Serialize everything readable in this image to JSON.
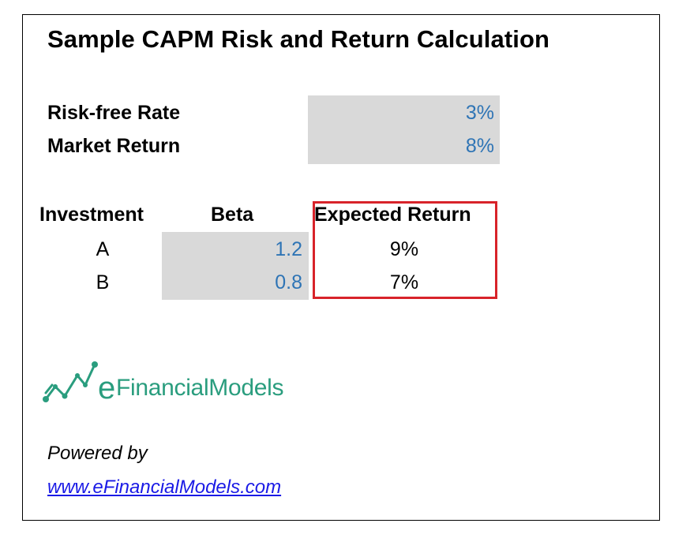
{
  "title": "Sample CAPM Risk and Return Calculation",
  "inputs": {
    "risk_free_label": "Risk-free Rate",
    "risk_free_value": "3%",
    "market_return_label": "Market Return",
    "market_return_value": "8%"
  },
  "table": {
    "headers": {
      "investment": "Investment",
      "beta": "Beta",
      "expected_return": "Expected Return"
    },
    "rows": [
      {
        "investment": "A",
        "beta": "1.2",
        "expected_return": "9%"
      },
      {
        "investment": "B",
        "beta": "0.8",
        "expected_return": "7%"
      }
    ]
  },
  "logo": {
    "prefix": "e",
    "name": "FinancialModels",
    "icon": "chart-line-icon"
  },
  "footer": {
    "powered_by": "Powered by",
    "link": "www.eFinancialModels.com"
  },
  "colors": {
    "input_blue": "#2e74b5",
    "input_fill": "#d9d9d9",
    "highlight_red": "#d8232a",
    "brand_green": "#2a9d7e",
    "link_blue": "#1a1ae6"
  }
}
